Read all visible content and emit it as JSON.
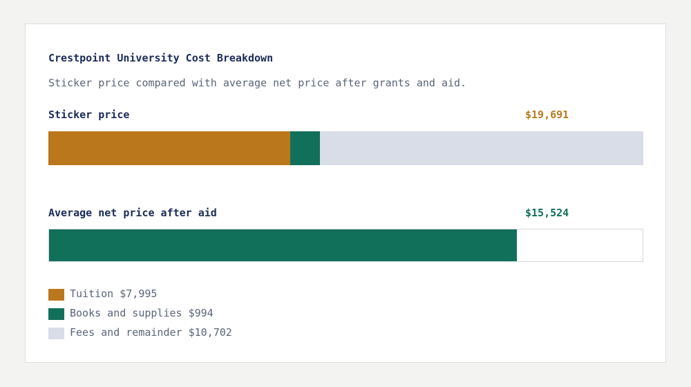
{
  "chart_data": {
    "type": "bar",
    "orientation": "horizontal-stacked",
    "title": "Crestpoint University Cost Breakdown",
    "subtitle": "Sticker price compared with average net price after grants and aid.",
    "bars": [
      {
        "label": "Sticker price",
        "value_label": "$19,691",
        "value": 19691,
        "value_color": "#b87a1e",
        "segments": [
          {
            "name": "Tuition",
            "value": 7995,
            "color": "#bb771c"
          },
          {
            "name": "Books and supplies",
            "value": 994,
            "color": "#11705a"
          },
          {
            "name": "Fees and remainder",
            "value": 10702,
            "color": "#d8dde7"
          }
        ]
      },
      {
        "label": "Average net price after aid",
        "value_label": "$15,524",
        "value": 15524,
        "value_color": "#11705a",
        "segments": [
          {
            "name": "Average net price",
            "value": 15524,
            "color": "#11705a"
          }
        ]
      }
    ],
    "legend": [
      {
        "label": "Tuition $7,995",
        "color": "#bb771c"
      },
      {
        "label": "Books and supplies $994",
        "color": "#11705a"
      },
      {
        "label": "Fees and remainder $10,702",
        "color": "#d8dde7"
      }
    ],
    "scale_max": 19691,
    "legend_position": "bottom-left"
  }
}
